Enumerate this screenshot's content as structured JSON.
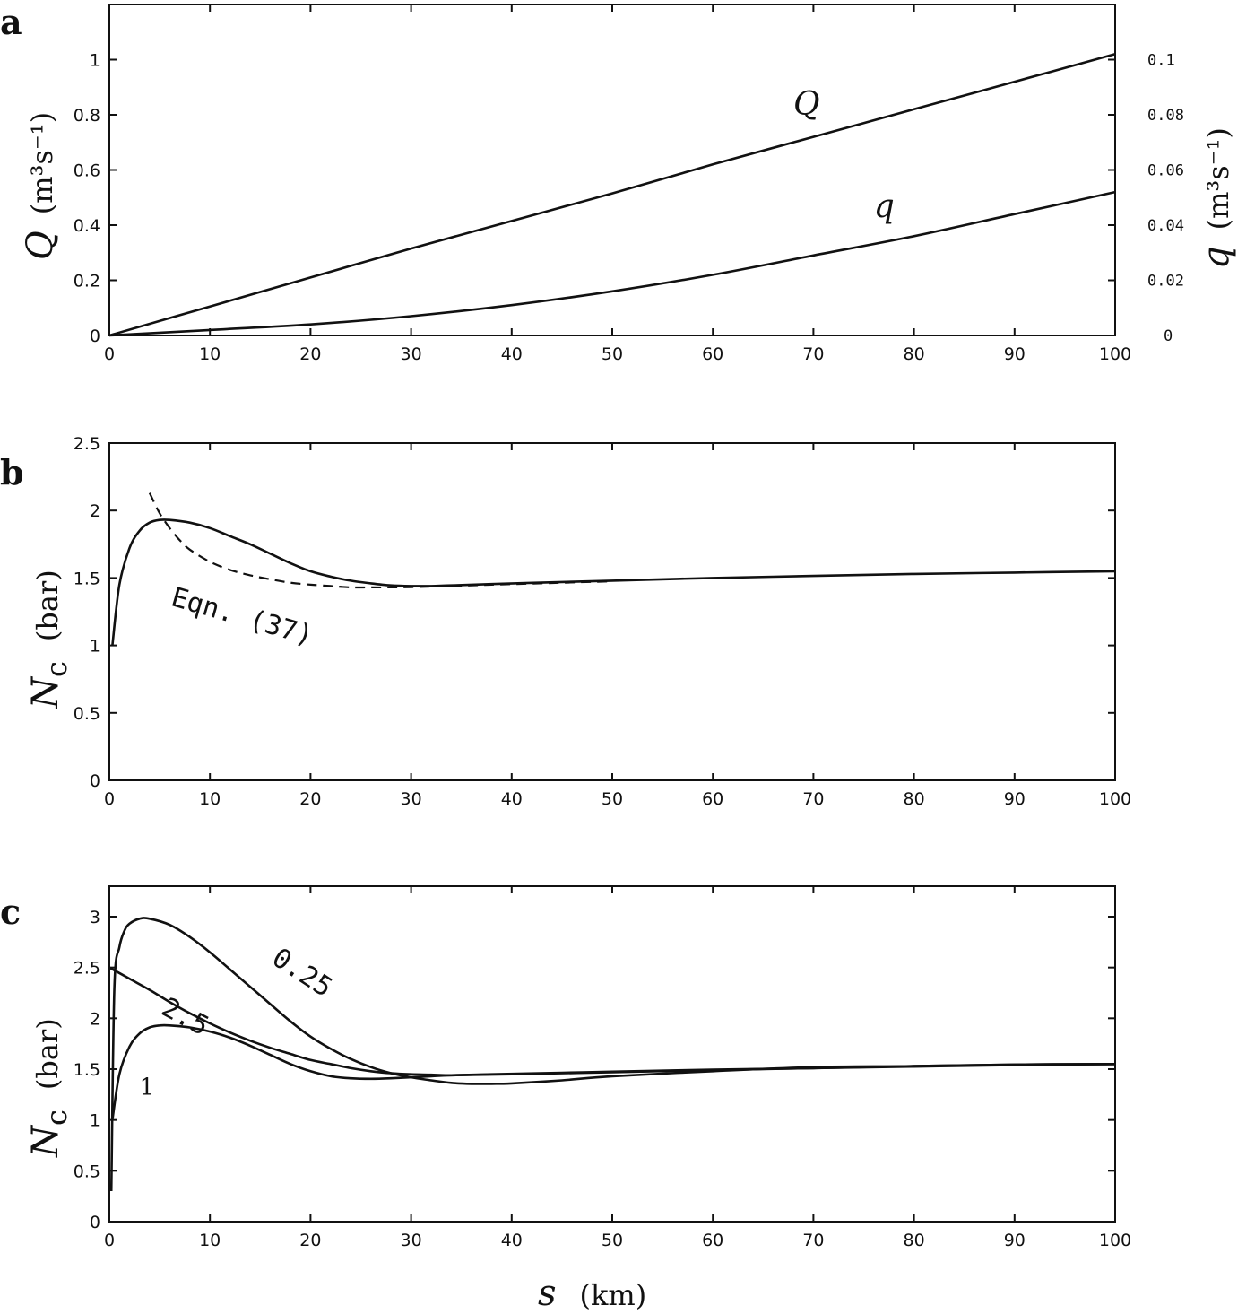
{
  "chart_data": [
    {
      "panel": "a",
      "type": "line",
      "x_range": [
        0,
        100
      ],
      "x_ticks": [
        "0",
        "10",
        "20",
        "30",
        "40",
        "50",
        "60",
        "70",
        "80",
        "90",
        "100"
      ],
      "y_left": {
        "label_symbol": "Q",
        "label_unit": "(m³s⁻¹)",
        "range": [
          0,
          1.2
        ],
        "ticks": [
          "0",
          "0.2",
          "0.4",
          "0.6",
          "0.8",
          "1"
        ]
      },
      "y_right": {
        "label_symbol": "q",
        "label_unit": "(m³s⁻¹)",
        "range": [
          0,
          0.12
        ],
        "ticks": [
          "0",
          "0.02",
          "0.04",
          "0.06",
          "0.08",
          "0.1"
        ]
      },
      "series": [
        {
          "name": "Q",
          "axis": "left",
          "x": [
            0,
            10,
            20,
            30,
            40,
            50,
            60,
            70,
            80,
            90,
            100
          ],
          "y": [
            0,
            0.105,
            0.21,
            0.315,
            0.415,
            0.515,
            0.62,
            0.72,
            0.82,
            0.92,
            1.02
          ]
        },
        {
          "name": "q",
          "axis": "right",
          "x": [
            0,
            10,
            20,
            30,
            40,
            50,
            60,
            70,
            80,
            90,
            100
          ],
          "y": [
            0,
            0.002,
            0.004,
            0.007,
            0.011,
            0.016,
            0.022,
            0.029,
            0.036,
            0.044,
            0.052
          ]
        }
      ],
      "curve_labels": [
        {
          "text": "Q",
          "x": 68,
          "y": 0.8
        },
        {
          "text": "q",
          "x": 76,
          "y": 0.43
        }
      ]
    },
    {
      "panel": "b",
      "type": "line",
      "x_range": [
        0,
        100
      ],
      "x_ticks": [
        "0",
        "10",
        "20",
        "30",
        "40",
        "50",
        "60",
        "70",
        "80",
        "90",
        "100"
      ],
      "y_left": {
        "label_symbol": "N",
        "label_sub": "c",
        "label_unit": "(bar)",
        "range": [
          0,
          2.5
        ],
        "ticks": [
          "0",
          "0.5",
          "1",
          "1.5",
          "2",
          "2.5"
        ]
      },
      "series": [
        {
          "name": "",
          "style": "solid",
          "x": [
            0.3,
            1,
            2,
            3,
            4,
            5,
            6,
            8,
            10,
            12,
            14,
            16,
            18,
            20,
            22,
            24,
            26,
            28,
            30,
            32,
            34,
            38,
            45,
            50,
            60,
            70,
            80,
            90,
            100
          ],
          "y": [
            1.0,
            1.45,
            1.72,
            1.85,
            1.91,
            1.93,
            1.93,
            1.91,
            1.87,
            1.81,
            1.75,
            1.68,
            1.61,
            1.55,
            1.51,
            1.48,
            1.46,
            1.445,
            1.44,
            1.44,
            1.445,
            1.455,
            1.47,
            1.48,
            1.5,
            1.515,
            1.53,
            1.54,
            1.55
          ]
        },
        {
          "name": "Eqn. (37)",
          "style": "dashed",
          "x": [
            4,
            5,
            6,
            7,
            8,
            10,
            12,
            14,
            16,
            18,
            20,
            22,
            24,
            26,
            28,
            30,
            32,
            34,
            38,
            45,
            50
          ],
          "y": [
            2.13,
            1.98,
            1.87,
            1.78,
            1.71,
            1.62,
            1.56,
            1.52,
            1.49,
            1.465,
            1.45,
            1.44,
            1.43,
            1.43,
            1.43,
            1.432,
            1.436,
            1.44,
            1.45,
            1.465,
            1.475
          ]
        }
      ],
      "annotation": {
        "text": "Eqn. (37)",
        "x": 6,
        "y": 1.3,
        "rotate": 16
      }
    },
    {
      "panel": "c",
      "type": "line",
      "x_range": [
        0,
        100
      ],
      "x_ticks": [
        "0",
        "10",
        "20",
        "30",
        "40",
        "50",
        "60",
        "70",
        "80",
        "90",
        "100"
      ],
      "x_label_symbol": "s",
      "x_label_unit": "(km)",
      "y_left": {
        "label_symbol": "N",
        "label_sub": "c",
        "label_unit": "(bar)",
        "range": [
          0,
          3.3
        ],
        "ticks": [
          "0",
          "0.5",
          "1",
          "1.5",
          "2",
          "2.5",
          "3"
        ]
      },
      "series": [
        {
          "name": "0.25",
          "x": [
            0.2,
            0.5,
            1,
            1.5,
            2,
            3,
            4,
            6,
            8,
            10,
            12,
            14,
            16,
            18,
            20,
            22,
            24,
            26,
            28,
            30,
            32,
            34,
            36,
            38,
            40,
            45,
            50,
            60,
            70,
            80,
            90,
            100
          ],
          "y": [
            0.3,
            2.3,
            2.7,
            2.86,
            2.93,
            2.98,
            2.98,
            2.92,
            2.8,
            2.65,
            2.48,
            2.31,
            2.14,
            1.97,
            1.82,
            1.7,
            1.6,
            1.52,
            1.46,
            1.42,
            1.39,
            1.365,
            1.355,
            1.355,
            1.36,
            1.39,
            1.43,
            1.48,
            1.52,
            1.53,
            1.545,
            1.55
          ]
        },
        {
          "name": "2.5",
          "x": [
            0,
            2,
            4,
            6,
            8,
            10,
            12,
            14,
            16,
            18,
            20,
            22,
            24,
            26,
            28,
            30,
            32,
            34,
            40,
            50,
            60,
            70,
            80,
            90,
            100
          ],
          "y": [
            2.5,
            2.39,
            2.28,
            2.16,
            2.05,
            1.95,
            1.86,
            1.78,
            1.71,
            1.65,
            1.59,
            1.55,
            1.51,
            1.48,
            1.46,
            1.45,
            1.445,
            1.44,
            1.45,
            1.47,
            1.49,
            1.51,
            1.53,
            1.545,
            1.55
          ]
        },
        {
          "name": "1",
          "x": [
            0.3,
            1,
            2,
            3,
            4,
            5,
            6,
            8,
            10,
            12,
            14,
            16,
            18,
            20,
            22,
            24,
            26,
            28,
            30,
            32,
            34,
            38,
            45,
            50,
            60,
            70,
            80,
            90,
            100
          ],
          "y": [
            1.0,
            1.45,
            1.72,
            1.85,
            1.91,
            1.93,
            1.93,
            1.91,
            1.87,
            1.81,
            1.73,
            1.64,
            1.55,
            1.48,
            1.43,
            1.41,
            1.405,
            1.41,
            1.42,
            1.43,
            1.44,
            1.45,
            1.465,
            1.475,
            1.495,
            1.51,
            1.525,
            1.54,
            1.55
          ]
        }
      ],
      "curve_labels": [
        {
          "text": "0.25",
          "x": 16,
          "y": 2.55,
          "rotate": 33
        },
        {
          "text": "2.5",
          "x": 5,
          "y": 2.05,
          "rotate": 28
        },
        {
          "text": "1",
          "x": 3,
          "y": 1.25,
          "rotate": 0
        }
      ]
    }
  ],
  "panels": {
    "a": {
      "letter": "a",
      "y_left_symbol": "Q",
      "y_left_unit": "(m³s⁻¹)",
      "y_right_symbol": "q",
      "y_right_unit": "(m³s⁻¹)"
    },
    "b": {
      "letter": "b",
      "y_symbol": "N",
      "y_sub": "c",
      "y_unit": "(bar)"
    },
    "c": {
      "letter": "c",
      "y_symbol": "N",
      "y_sub": "c",
      "y_unit": "(bar)",
      "x_symbol": "s",
      "x_unit": "(km)"
    }
  }
}
